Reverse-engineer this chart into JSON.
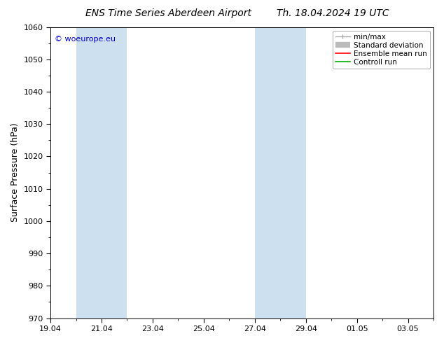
{
  "title": "ENS Time Series Aberdeen Airport",
  "title2": "Th. 18.04.2024 19 UTC",
  "ylabel": "Surface Pressure (hPa)",
  "ylim": [
    970,
    1060
  ],
  "yticks": [
    970,
    980,
    990,
    1000,
    1010,
    1020,
    1030,
    1040,
    1050,
    1060
  ],
  "xtick_labels": [
    "19.04",
    "21.04",
    "23.04",
    "25.04",
    "27.04",
    "29.04",
    "01.05",
    "03.05"
  ],
  "shade_color": "#cce0f0",
  "background_color": "#ffffff",
  "watermark": "© woeurope.eu",
  "watermark_color": "#0000cc",
  "font_family": "DejaVu Sans",
  "title_fontsize": 10,
  "tick_fontsize": 8,
  "ylabel_fontsize": 9,
  "legend_fontsize": 7.5
}
